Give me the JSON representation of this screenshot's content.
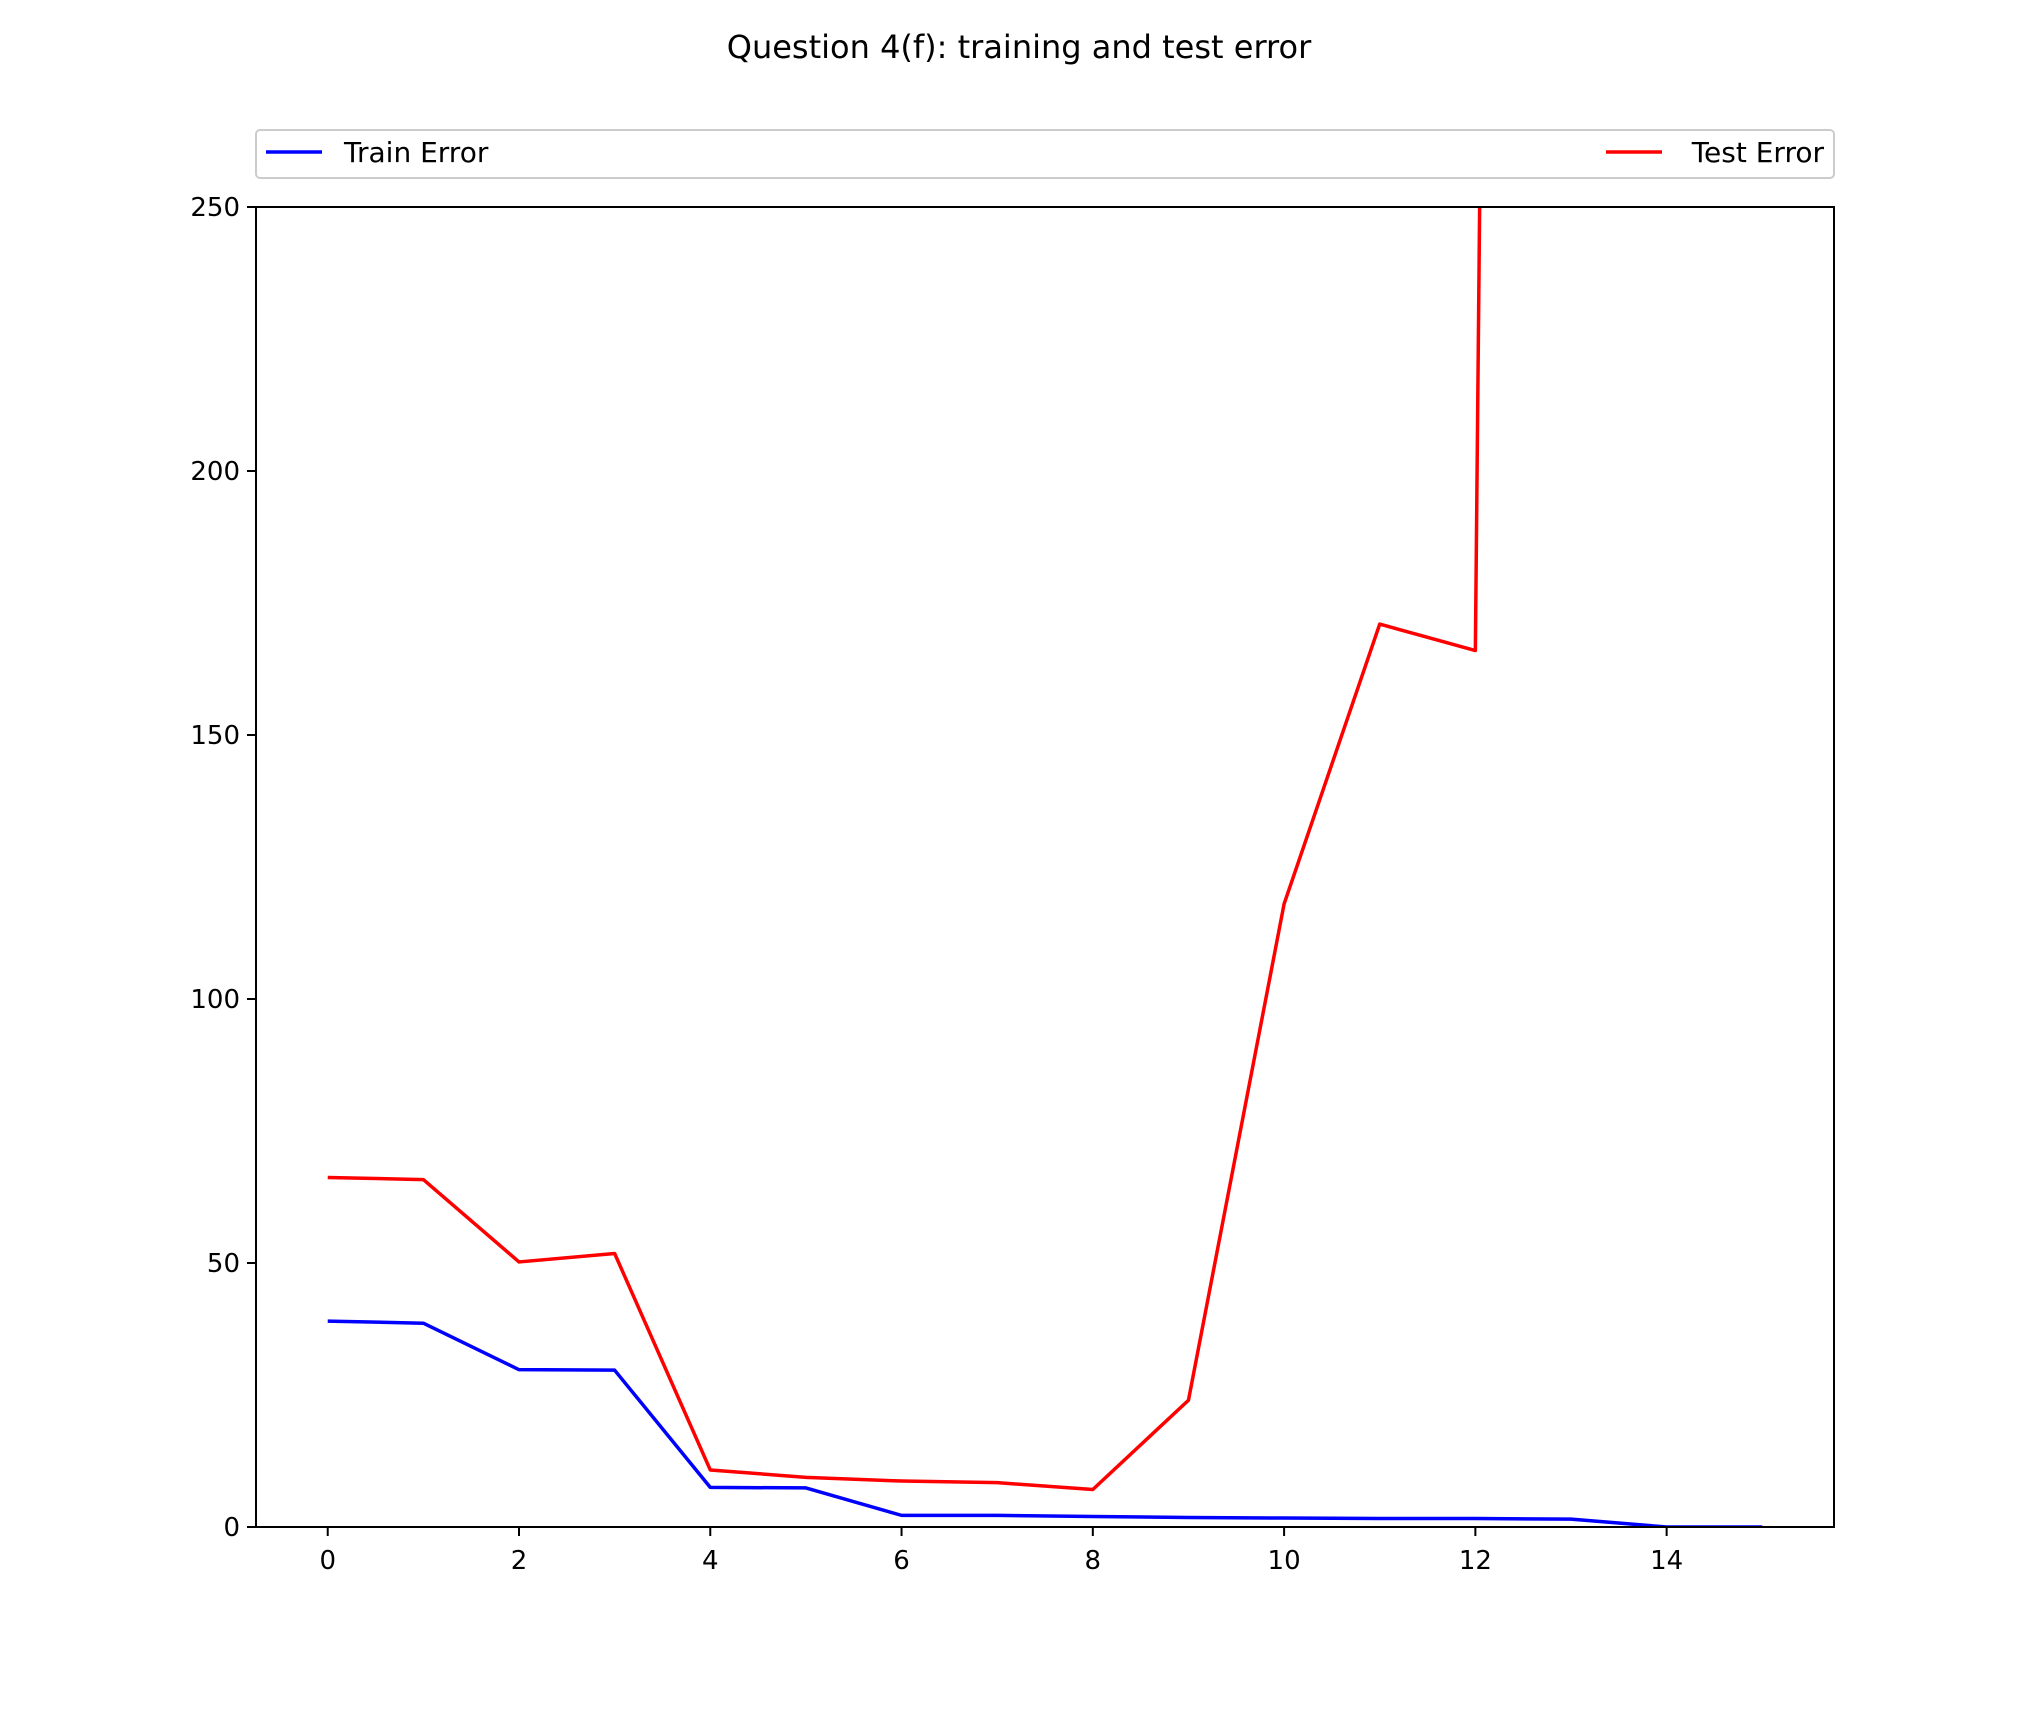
{
  "chart_data": {
    "type": "line",
    "title": "Question 4(f): training and test error",
    "xlabel": "",
    "ylabel": "",
    "xlim": [
      -0.75,
      15.75
    ],
    "ylim": [
      0,
      250
    ],
    "x_ticks": [
      0,
      2,
      4,
      6,
      8,
      10,
      12,
      14
    ],
    "y_ticks": [
      0,
      50,
      100,
      150,
      200,
      250
    ],
    "grid": false,
    "legend_position": "top, spanning full width",
    "series": [
      {
        "name": "Train Error",
        "color": "#0000ff",
        "x": [
          0,
          1,
          2,
          3,
          4,
          5,
          6,
          7,
          8,
          9,
          10,
          11,
          12,
          13,
          14,
          15
        ],
        "values": [
          39,
          38.6,
          29.8,
          29.7,
          7.5,
          7.4,
          2.2,
          2.2,
          2.0,
          1.8,
          1.7,
          1.6,
          1.6,
          1.5,
          0,
          0
        ]
      },
      {
        "name": "Test Error",
        "color": "#ff0000",
        "x": [
          0,
          1,
          2,
          3,
          4,
          5,
          6,
          7,
          8,
          9,
          10,
          11,
          12,
          12.05
        ],
        "values": [
          66.2,
          65.8,
          50.2,
          51.8,
          10.8,
          9.4,
          8.7,
          8.4,
          7.1,
          24,
          118,
          171,
          166,
          260
        ]
      }
    ]
  }
}
